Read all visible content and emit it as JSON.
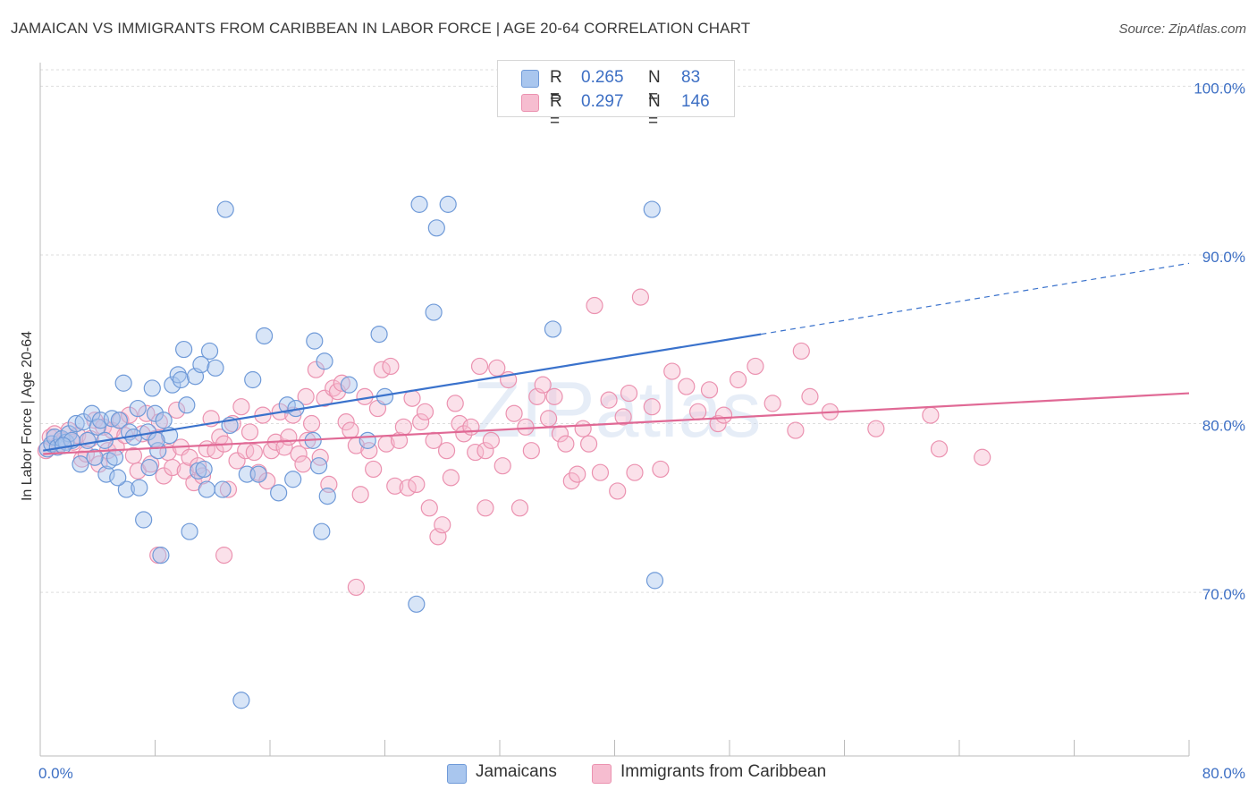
{
  "title": "JAMAICAN VS IMMIGRANTS FROM CARIBBEAN IN LABOR FORCE | AGE 20-64 CORRELATION CHART",
  "source": "Source: ZipAtlas.com",
  "watermark": "ZIPatlas",
  "legend": {
    "rows": [
      {
        "r_label": "R =",
        "r_value": "0.265",
        "n_label": "N =",
        "n_value": "83"
      },
      {
        "r_label": "R =",
        "r_value": "0.297",
        "n_label": "N =",
        "n_value": "146"
      }
    ]
  },
  "bottom_legend": [
    {
      "label": "Jamaicans"
    },
    {
      "label": "Immigrants from Caribbean"
    }
  ],
  "colors": {
    "blue_fill": "#a9c6ee",
    "blue_stroke": "#6f9ad8",
    "blue_line": "#3a72cc",
    "pink_fill": "#f6bdd0",
    "pink_stroke": "#eb92b0",
    "pink_line": "#e06995",
    "axis_label": "#3d6fc4",
    "grid": "#dddddd"
  },
  "chart_data": {
    "type": "scatter",
    "title": "JAMAICAN VS IMMIGRANTS FROM CARIBBEAN IN LABOR FORCE | AGE 20-64 CORRELATION CHART",
    "xlabel": "",
    "ylabel": "In Labor Force | Age 20-64",
    "xlim": [
      0,
      80
    ],
    "ylim": [
      60.3,
      101.4
    ],
    "x_tick_labels": [
      "0.0%",
      "80.0%"
    ],
    "y_ticks": [
      70,
      80,
      90,
      100
    ],
    "y_tick_labels": [
      "70.0%",
      "80.0%",
      "90.0%",
      "100.0%"
    ],
    "grid": true,
    "legend_position": "top-center",
    "series": [
      {
        "name": "Jamaicans",
        "color": "#a9c6ee",
        "r": 0.265,
        "n": 83,
        "trend": {
          "x0": 0.2,
          "y0": 78.4,
          "x1": 50.2,
          "y1": 85.3,
          "dashed_to_x": 80,
          "dashed_to_y": 89.5
        },
        "points": [
          [
            0.5,
            78.5
          ],
          [
            0.8,
            78.8
          ],
          [
            1.0,
            79.2
          ],
          [
            1.2,
            78.6
          ],
          [
            1.5,
            79.1
          ],
          [
            1.8,
            78.9
          ],
          [
            2.0,
            79.4
          ],
          [
            2.2,
            79.0
          ],
          [
            2.5,
            80.0
          ],
          [
            2.8,
            77.6
          ],
          [
            3.0,
            80.1
          ],
          [
            3.3,
            79.0
          ],
          [
            3.6,
            80.6
          ],
          [
            4.0,
            79.8
          ],
          [
            4.2,
            80.2
          ],
          [
            4.5,
            79.0
          ],
          [
            4.6,
            77.0
          ],
          [
            4.8,
            77.8
          ],
          [
            5.0,
            80.3
          ],
          [
            5.2,
            78.0
          ],
          [
            5.5,
            80.2
          ],
          [
            5.8,
            82.4
          ],
          [
            6.0,
            76.1
          ],
          [
            6.2,
            79.5
          ],
          [
            6.5,
            79.2
          ],
          [
            6.8,
            80.9
          ],
          [
            6.9,
            76.2
          ],
          [
            7.2,
            74.3
          ],
          [
            7.5,
            79.5
          ],
          [
            7.6,
            77.4
          ],
          [
            7.8,
            82.1
          ],
          [
            8.0,
            80.6
          ],
          [
            8.2,
            78.4
          ],
          [
            8.4,
            72.2
          ],
          [
            8.6,
            80.2
          ],
          [
            9.0,
            79.3
          ],
          [
            9.2,
            82.3
          ],
          [
            9.6,
            82.9
          ],
          [
            9.8,
            82.6
          ],
          [
            10.0,
            84.4
          ],
          [
            10.2,
            81.1
          ],
          [
            10.4,
            73.6
          ],
          [
            10.8,
            82.8
          ],
          [
            11.0,
            77.2
          ],
          [
            11.2,
            83.5
          ],
          [
            11.4,
            77.3
          ],
          [
            11.6,
            76.1
          ],
          [
            11.8,
            84.3
          ],
          [
            12.2,
            83.3
          ],
          [
            12.7,
            76.1
          ],
          [
            12.9,
            92.7
          ],
          [
            13.2,
            79.9
          ],
          [
            14.0,
            63.6
          ],
          [
            14.4,
            77.0
          ],
          [
            14.8,
            82.6
          ],
          [
            15.2,
            77.0
          ],
          [
            15.6,
            85.2
          ],
          [
            16.6,
            75.9
          ],
          [
            17.2,
            81.1
          ],
          [
            17.6,
            76.7
          ],
          [
            17.8,
            80.9
          ],
          [
            19.1,
            84.9
          ],
          [
            19.0,
            79.0
          ],
          [
            19.4,
            77.5
          ],
          [
            19.6,
            73.6
          ],
          [
            19.8,
            83.7
          ],
          [
            20.0,
            75.7
          ],
          [
            21.5,
            82.3
          ],
          [
            22.8,
            79.0
          ],
          [
            23.6,
            85.3
          ],
          [
            24.0,
            81.6
          ],
          [
            26.4,
            93.0
          ],
          [
            26.2,
            69.3
          ],
          [
            27.4,
            86.6
          ],
          [
            27.6,
            91.6
          ],
          [
            28.4,
            93.0
          ],
          [
            35.7,
            85.6
          ],
          [
            42.6,
            92.7
          ],
          [
            42.8,
            70.7
          ],
          [
            1.6,
            78.7
          ],
          [
            3.8,
            78.0
          ],
          [
            5.4,
            76.8
          ],
          [
            8.1,
            79.0
          ]
        ]
      },
      {
        "name": "Immigrants from Caribbean",
        "color": "#f6bdd0",
        "r": 0.297,
        "n": 146,
        "trend": {
          "x0": 0.2,
          "y0": 78.2,
          "x1": 80,
          "y1": 81.8
        },
        "points": [
          [
            0.4,
            78.4
          ],
          [
            0.7,
            79.2
          ],
          [
            1.0,
            79.4
          ],
          [
            1.3,
            78.8
          ],
          [
            1.6,
            79.0
          ],
          [
            2.0,
            79.6
          ],
          [
            2.3,
            78.9
          ],
          [
            2.6,
            79.3
          ],
          [
            2.9,
            77.9
          ],
          [
            3.2,
            78.2
          ],
          [
            3.5,
            79.1
          ],
          [
            3.8,
            80.2
          ],
          [
            4.1,
            77.6
          ],
          [
            4.4,
            79.8
          ],
          [
            4.7,
            78.4
          ],
          [
            5.0,
            79.6
          ],
          [
            5.3,
            78.6
          ],
          [
            5.6,
            80.2
          ],
          [
            5.9,
            79.3
          ],
          [
            6.2,
            80.5
          ],
          [
            6.5,
            78.1
          ],
          [
            6.8,
            77.2
          ],
          [
            7.1,
            79.4
          ],
          [
            7.4,
            80.6
          ],
          [
            7.7,
            77.6
          ],
          [
            8.0,
            79.1
          ],
          [
            8.3,
            80.1
          ],
          [
            8.6,
            76.9
          ],
          [
            8.9,
            78.3
          ],
          [
            9.2,
            77.4
          ],
          [
            9.5,
            80.8
          ],
          [
            9.8,
            78.6
          ],
          [
            10.1,
            77.2
          ],
          [
            10.4,
            78.0
          ],
          [
            10.7,
            76.5
          ],
          [
            11.0,
            77.5
          ],
          [
            11.3,
            76.9
          ],
          [
            11.6,
            78.5
          ],
          [
            11.9,
            80.3
          ],
          [
            12.2,
            78.4
          ],
          [
            12.5,
            79.2
          ],
          [
            12.8,
            78.8
          ],
          [
            13.1,
            76.1
          ],
          [
            13.4,
            80.0
          ],
          [
            13.7,
            77.8
          ],
          [
            14.0,
            81.0
          ],
          [
            14.3,
            78.4
          ],
          [
            14.6,
            79.5
          ],
          [
            14.9,
            78.3
          ],
          [
            15.2,
            77.1
          ],
          [
            15.5,
            80.5
          ],
          [
            15.8,
            76.6
          ],
          [
            16.1,
            78.4
          ],
          [
            16.4,
            78.9
          ],
          [
            16.7,
            80.7
          ],
          [
            17.0,
            78.6
          ],
          [
            17.3,
            79.2
          ],
          [
            17.6,
            80.5
          ],
          [
            18.0,
            78.2
          ],
          [
            18.3,
            77.6
          ],
          [
            18.6,
            79.0
          ],
          [
            18.9,
            80.0
          ],
          [
            19.2,
            83.2
          ],
          [
            19.5,
            78.0
          ],
          [
            19.8,
            81.5
          ],
          [
            20.1,
            76.4
          ],
          [
            20.4,
            82.1
          ],
          [
            20.7,
            81.9
          ],
          [
            21.0,
            82.4
          ],
          [
            21.3,
            80.1
          ],
          [
            21.6,
            79.6
          ],
          [
            22.0,
            78.7
          ],
          [
            22.3,
            75.8
          ],
          [
            22.6,
            81.6
          ],
          [
            22.9,
            78.4
          ],
          [
            23.2,
            77.3
          ],
          [
            23.5,
            80.9
          ],
          [
            23.8,
            83.2
          ],
          [
            24.1,
            78.8
          ],
          [
            24.4,
            83.4
          ],
          [
            24.7,
            76.3
          ],
          [
            25.0,
            79.0
          ],
          [
            25.3,
            79.8
          ],
          [
            25.6,
            76.2
          ],
          [
            25.9,
            81.5
          ],
          [
            26.2,
            76.4
          ],
          [
            26.5,
            80.1
          ],
          [
            26.8,
            80.7
          ],
          [
            27.1,
            75.0
          ],
          [
            27.4,
            79.0
          ],
          [
            27.7,
            73.3
          ],
          [
            28.0,
            74.0
          ],
          [
            28.3,
            78.4
          ],
          [
            28.6,
            76.8
          ],
          [
            28.9,
            81.2
          ],
          [
            29.2,
            80.0
          ],
          [
            29.5,
            79.4
          ],
          [
            30.0,
            79.8
          ],
          [
            30.3,
            78.3
          ],
          [
            30.6,
            83.4
          ],
          [
            31.0,
            78.4
          ],
          [
            31.4,
            79.0
          ],
          [
            31.8,
            83.3
          ],
          [
            32.2,
            77.5
          ],
          [
            32.6,
            82.6
          ],
          [
            33.0,
            80.6
          ],
          [
            33.4,
            75.0
          ],
          [
            33.8,
            79.8
          ],
          [
            34.2,
            78.4
          ],
          [
            34.6,
            81.6
          ],
          [
            35.0,
            82.3
          ],
          [
            35.4,
            80.3
          ],
          [
            35.8,
            81.6
          ],
          [
            36.2,
            79.4
          ],
          [
            36.6,
            78.8
          ],
          [
            37.0,
            76.6
          ],
          [
            37.4,
            77.0
          ],
          [
            37.8,
            79.7
          ],
          [
            38.2,
            78.8
          ],
          [
            38.6,
            87.0
          ],
          [
            39.0,
            77.1
          ],
          [
            39.6,
            81.4
          ],
          [
            40.2,
            76.0
          ],
          [
            40.6,
            80.4
          ],
          [
            41.0,
            81.8
          ],
          [
            41.4,
            77.1
          ],
          [
            41.8,
            87.5
          ],
          [
            42.6,
            81.0
          ],
          [
            43.2,
            77.3
          ],
          [
            44.0,
            83.1
          ],
          [
            45.0,
            82.2
          ],
          [
            45.8,
            80.7
          ],
          [
            46.6,
            82.0
          ],
          [
            47.2,
            80.0
          ],
          [
            47.6,
            80.5
          ],
          [
            48.6,
            82.6
          ],
          [
            49.8,
            83.4
          ],
          [
            51.0,
            81.2
          ],
          [
            52.6,
            79.6
          ],
          [
            53.0,
            84.3
          ],
          [
            53.6,
            81.6
          ],
          [
            55.0,
            80.7
          ],
          [
            58.2,
            79.7
          ],
          [
            62.0,
            80.5
          ],
          [
            62.6,
            78.5
          ],
          [
            65.6,
            78.0
          ],
          [
            8.2,
            72.2
          ],
          [
            12.8,
            72.2
          ],
          [
            22.0,
            70.3
          ],
          [
            31.0,
            75.0
          ],
          [
            18.5,
            81.6
          ]
        ]
      }
    ]
  }
}
